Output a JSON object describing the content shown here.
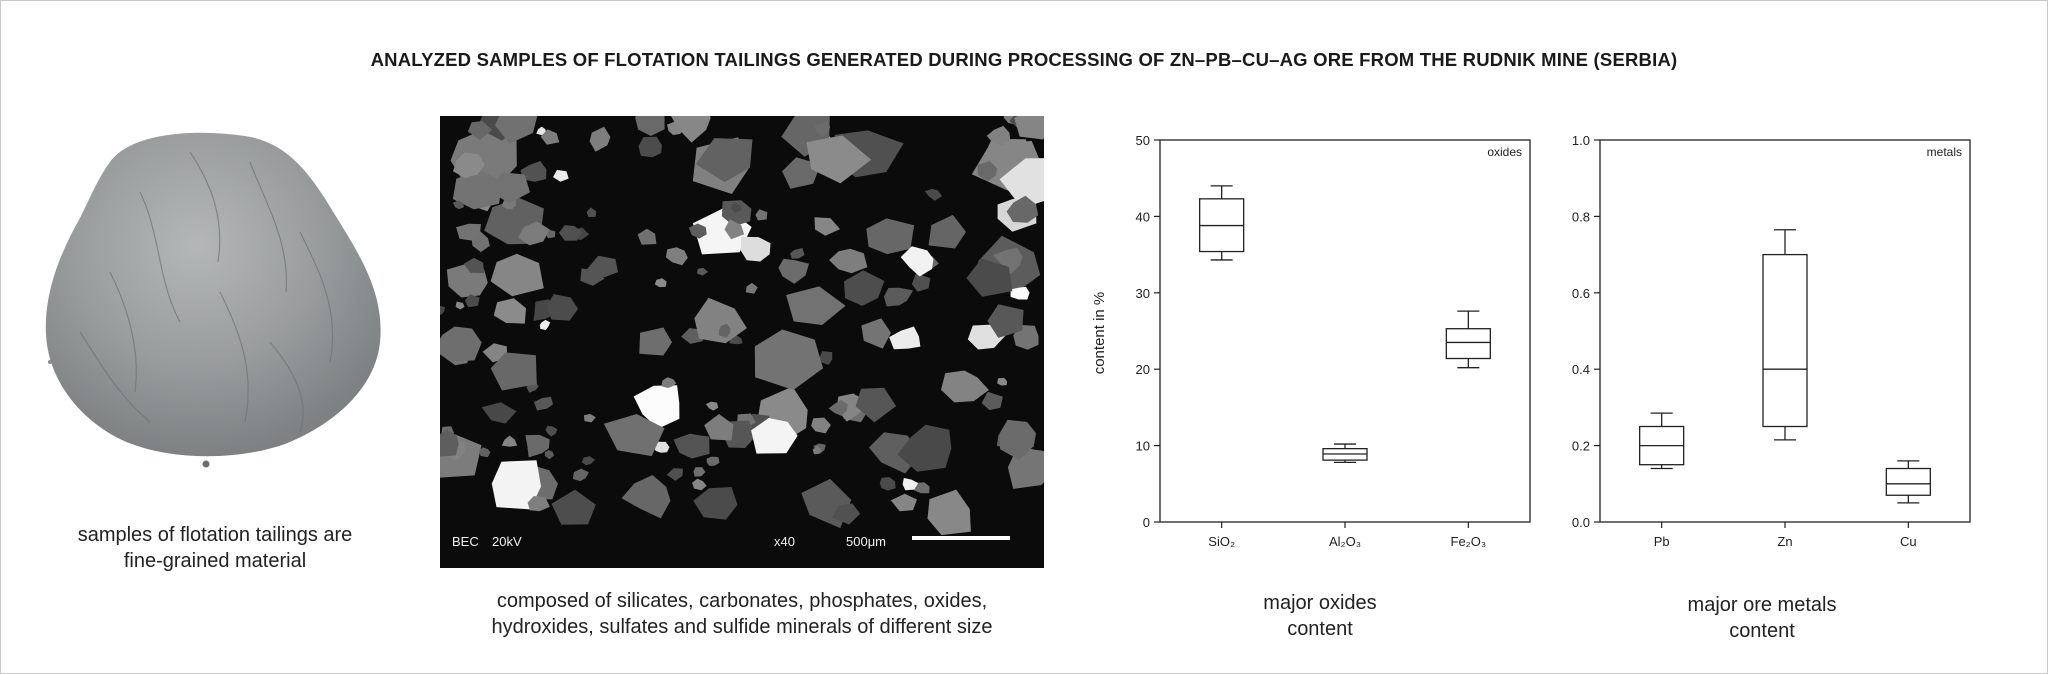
{
  "title": "ANALYZED SAMPLES OF FLOTATION TAILINGS GENERATED DURING  PROCESSING OF ZN–PB–CU–AG ORE FROM THE RUDNIK MINE (SERBIA)",
  "panels": {
    "sample": {
      "caption_line1": "samples of flotation tailings are",
      "caption_line2": "fine-grained material"
    },
    "sem": {
      "label_bec": "BEC",
      "label_kv": "20kV",
      "label_mag": "x40",
      "label_scale": "500μm",
      "caption_line1": "composed of silicates, carbonates, phosphates, oxides,",
      "caption_line2": "hydroxides, sulfates and sulfide minerals of different size"
    },
    "oxides": {
      "caption_line1": "major oxides",
      "caption_line2": "content"
    },
    "metals": {
      "caption_line1": "major ore metals",
      "caption_line2": "content"
    }
  },
  "colors": {
    "powder": "#9a9d9e",
    "sem_background": "#0b0b0b",
    "axis": "#222222"
  },
  "chart_data": [
    {
      "type": "box",
      "corner_label": "oxides",
      "ylabel": "content in %",
      "xlabel": "",
      "ylim": [
        0,
        50
      ],
      "yticks": [
        "0",
        "10",
        "20",
        "30",
        "40",
        "50"
      ],
      "ytick_values": [
        0,
        10,
        20,
        30,
        40,
        50
      ],
      "categories": [
        "SiO₂",
        "Al₂O₃",
        "Fe₂O₃"
      ],
      "boxes": [
        {
          "min": 34.3,
          "q1": 35.4,
          "median": 38.8,
          "q3": 42.3,
          "max": 44.0
        },
        {
          "min": 7.8,
          "q1": 8.1,
          "median": 8.9,
          "q3": 9.6,
          "max": 10.2
        },
        {
          "min": 20.2,
          "q1": 21.4,
          "median": 23.5,
          "q3": 25.3,
          "max": 27.6
        }
      ]
    },
    {
      "type": "box",
      "corner_label": "metals",
      "ylabel": "",
      "xlabel": "",
      "ylim": [
        0,
        1.0
      ],
      "yticks": [
        "0.0",
        "0.2",
        "0.4",
        "0.6",
        "0.8",
        "1.0"
      ],
      "ytick_values": [
        0,
        0.2,
        0.4,
        0.6,
        0.8,
        1.0
      ],
      "categories": [
        "Pb",
        "Zn",
        "Cu"
      ],
      "boxes": [
        {
          "min": 0.14,
          "q1": 0.15,
          "median": 0.2,
          "q3": 0.25,
          "max": 0.285
        },
        {
          "min": 0.215,
          "q1": 0.25,
          "median": 0.4,
          "q3": 0.7,
          "max": 0.765
        },
        {
          "min": 0.05,
          "q1": 0.07,
          "median": 0.1,
          "q3": 0.14,
          "max": 0.16
        }
      ]
    }
  ]
}
